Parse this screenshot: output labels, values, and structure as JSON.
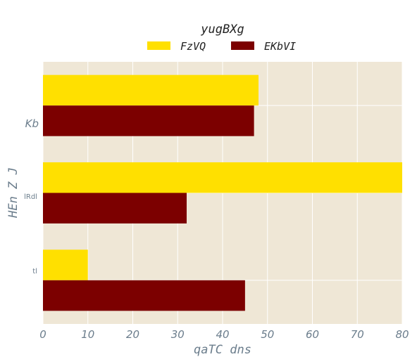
{
  "colors": {
    "plot_bg": "#EFE7D6",
    "grid": "#FFFFFF",
    "text": "#6B7D8C",
    "title": "#222222"
  },
  "chart_data": {
    "type": "bar",
    "orientation": "horizontal",
    "title": "yugBXg",
    "xlabel": "qaTC dns",
    "ylabel": "HEn Z J",
    "xlim": [
      0,
      80
    ],
    "xticks": [
      "0",
      "10",
      "20",
      "30",
      "40",
      "50",
      "60",
      "70",
      "80"
    ],
    "categories": [
      "Kb",
      "lRdl",
      "tl"
    ],
    "series": [
      {
        "name": "FzVQ",
        "color": "#FFE000",
        "values": [
          48,
          80,
          10
        ]
      },
      {
        "name": "EKbVI",
        "color": "#7C0000",
        "values": [
          47,
          32,
          45
        ]
      }
    ],
    "grid": true,
    "legend": "top-center"
  }
}
